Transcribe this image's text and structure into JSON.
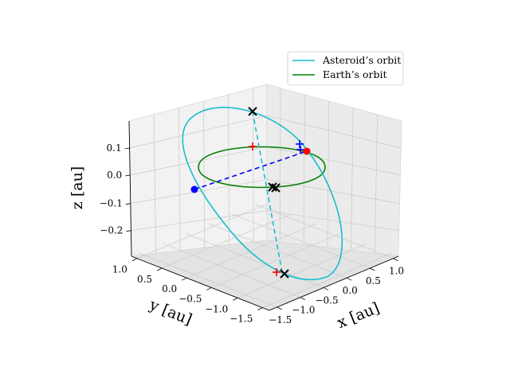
{
  "chart_data": {
    "type": "line",
    "projection": "3d",
    "grid": true,
    "legend_position": "top-right",
    "xlabel": "x [au]",
    "ylabel": "y [au]",
    "zlabel": "z [au]",
    "xlim": [
      -1.5,
      1.0
    ],
    "ylim": [
      -1.5,
      1.0
    ],
    "zlim": [
      -0.25,
      0.15
    ],
    "x_ticks": [
      "−1.5",
      "−1.0",
      "−0.5",
      "0.0",
      "0.5",
      "1.0"
    ],
    "y_ticks": [
      "1.0",
      "0.5",
      "0.0",
      "−0.5",
      "−1.0",
      "−1.5"
    ],
    "z_ticks": [
      "0.1",
      "0.0",
      "−0.1",
      "−0.2"
    ],
    "series": [
      {
        "name": "Asteroid’s orbit",
        "color": "#17becf",
        "kind": "orbit",
        "center": [
          -0.15,
          -0.15,
          -0.05
        ],
        "semi_axes": [
          1.45,
          0.12,
          0.2
        ]
      },
      {
        "name": "Earth’s orbit",
        "color": "#008000",
        "kind": "orbit",
        "center": [
          0,
          0,
          0
        ],
        "radius": 1.0
      }
    ],
    "annotations": {
      "line_of_nodes": {
        "color": "#0000ff",
        "style": "dashed"
      },
      "apsides_line": {
        "color": "#17becf",
        "style": "dashed"
      },
      "points": [
        {
          "symbol": "x",
          "color": "#000000"
        },
        {
          "symbol": "x",
          "color": "#000000"
        },
        {
          "symbol": "x",
          "color": "#000000"
        },
        {
          "symbol": "+",
          "color": "#ff0000"
        },
        {
          "symbol": "+",
          "color": "#ff0000"
        },
        {
          "symbol": "+",
          "color": "#0000ff"
        },
        {
          "symbol": "dot",
          "color": "#0000ff"
        },
        {
          "symbol": "dot",
          "color": "#ff0000"
        }
      ]
    }
  }
}
